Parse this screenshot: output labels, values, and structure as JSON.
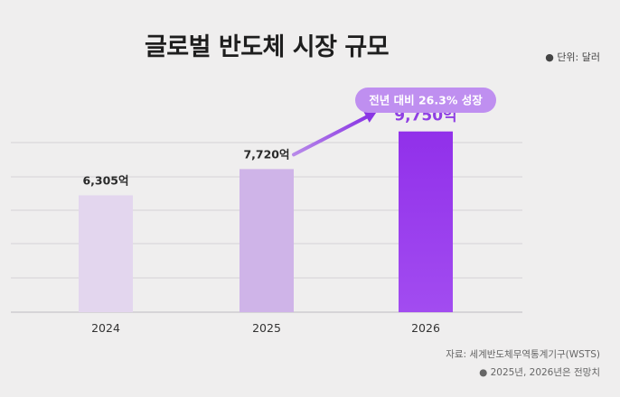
{
  "chart_data": {
    "type": "bar",
    "title": "글로벌 반도체 시장 규모",
    "unit_note": "● 단위: 달러",
    "categories": [
      "2024",
      "2025",
      "2026"
    ],
    "values": [
      6305,
      7720,
      9750
    ],
    "value_labels": [
      "6,305억",
      "7,720억",
      "9,750억"
    ],
    "bar_colors": [
      "#e3d6ee",
      "#cfb4e8",
      "#9433ea"
    ],
    "highlight_color": "#8f3fe3",
    "callout": "전년 대비 26.3% 성장",
    "callout_color": "#bf8ff0",
    "ylim": [
      0,
      11000
    ],
    "grid": true,
    "source": "자료: 세계반도체무역통계기구(WSTS)",
    "footnote": "● 2025년, 2026년은 전망치"
  }
}
